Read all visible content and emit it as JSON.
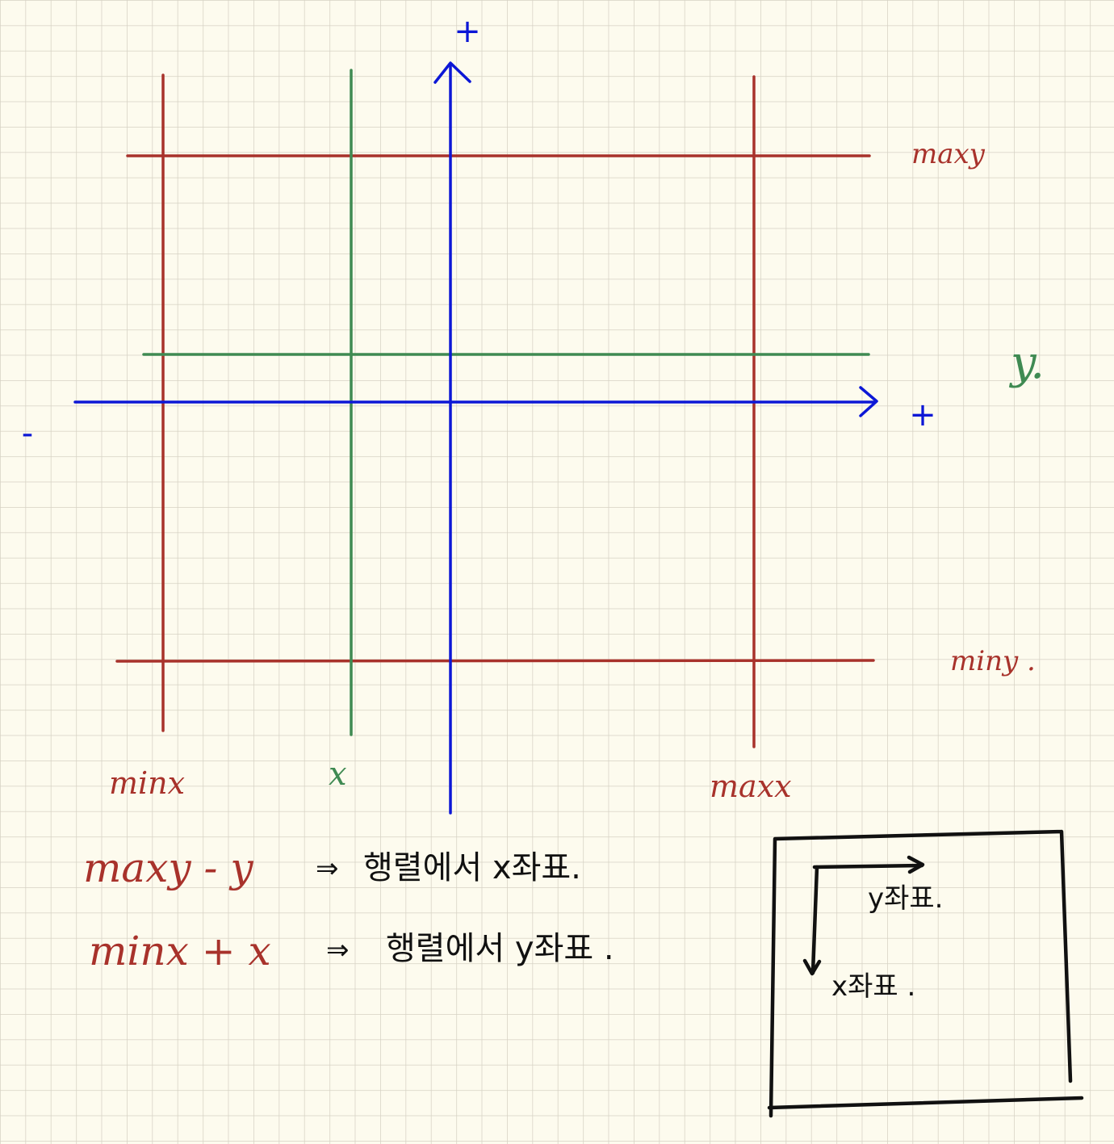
{
  "colors": {
    "paper": "#fdfbee",
    "grid": "#d6d2c4",
    "red": "#a8322b",
    "green": "#3f8a52",
    "blue": "#0c17d6",
    "ink": "#111111"
  },
  "axis_labels": {
    "y_plus": "+",
    "x_plus": "+",
    "x_minus": "-"
  },
  "bound_labels": {
    "maxy": "maxy",
    "miny": "miny .",
    "minx": "minx",
    "maxx": "maxx"
  },
  "point_labels": {
    "x": "x",
    "y": "y."
  },
  "formulas": [
    {
      "expr": "maxy - y",
      "arrow": "⇒",
      "desc": "행렬에서 x좌표."
    },
    {
      "expr": "minx + x",
      "arrow": "⇒",
      "desc": "행렬에서 y좌표 ."
    }
  ],
  "matrix_box": {
    "top_label": "y좌표.",
    "side_label": "x좌표 ."
  }
}
